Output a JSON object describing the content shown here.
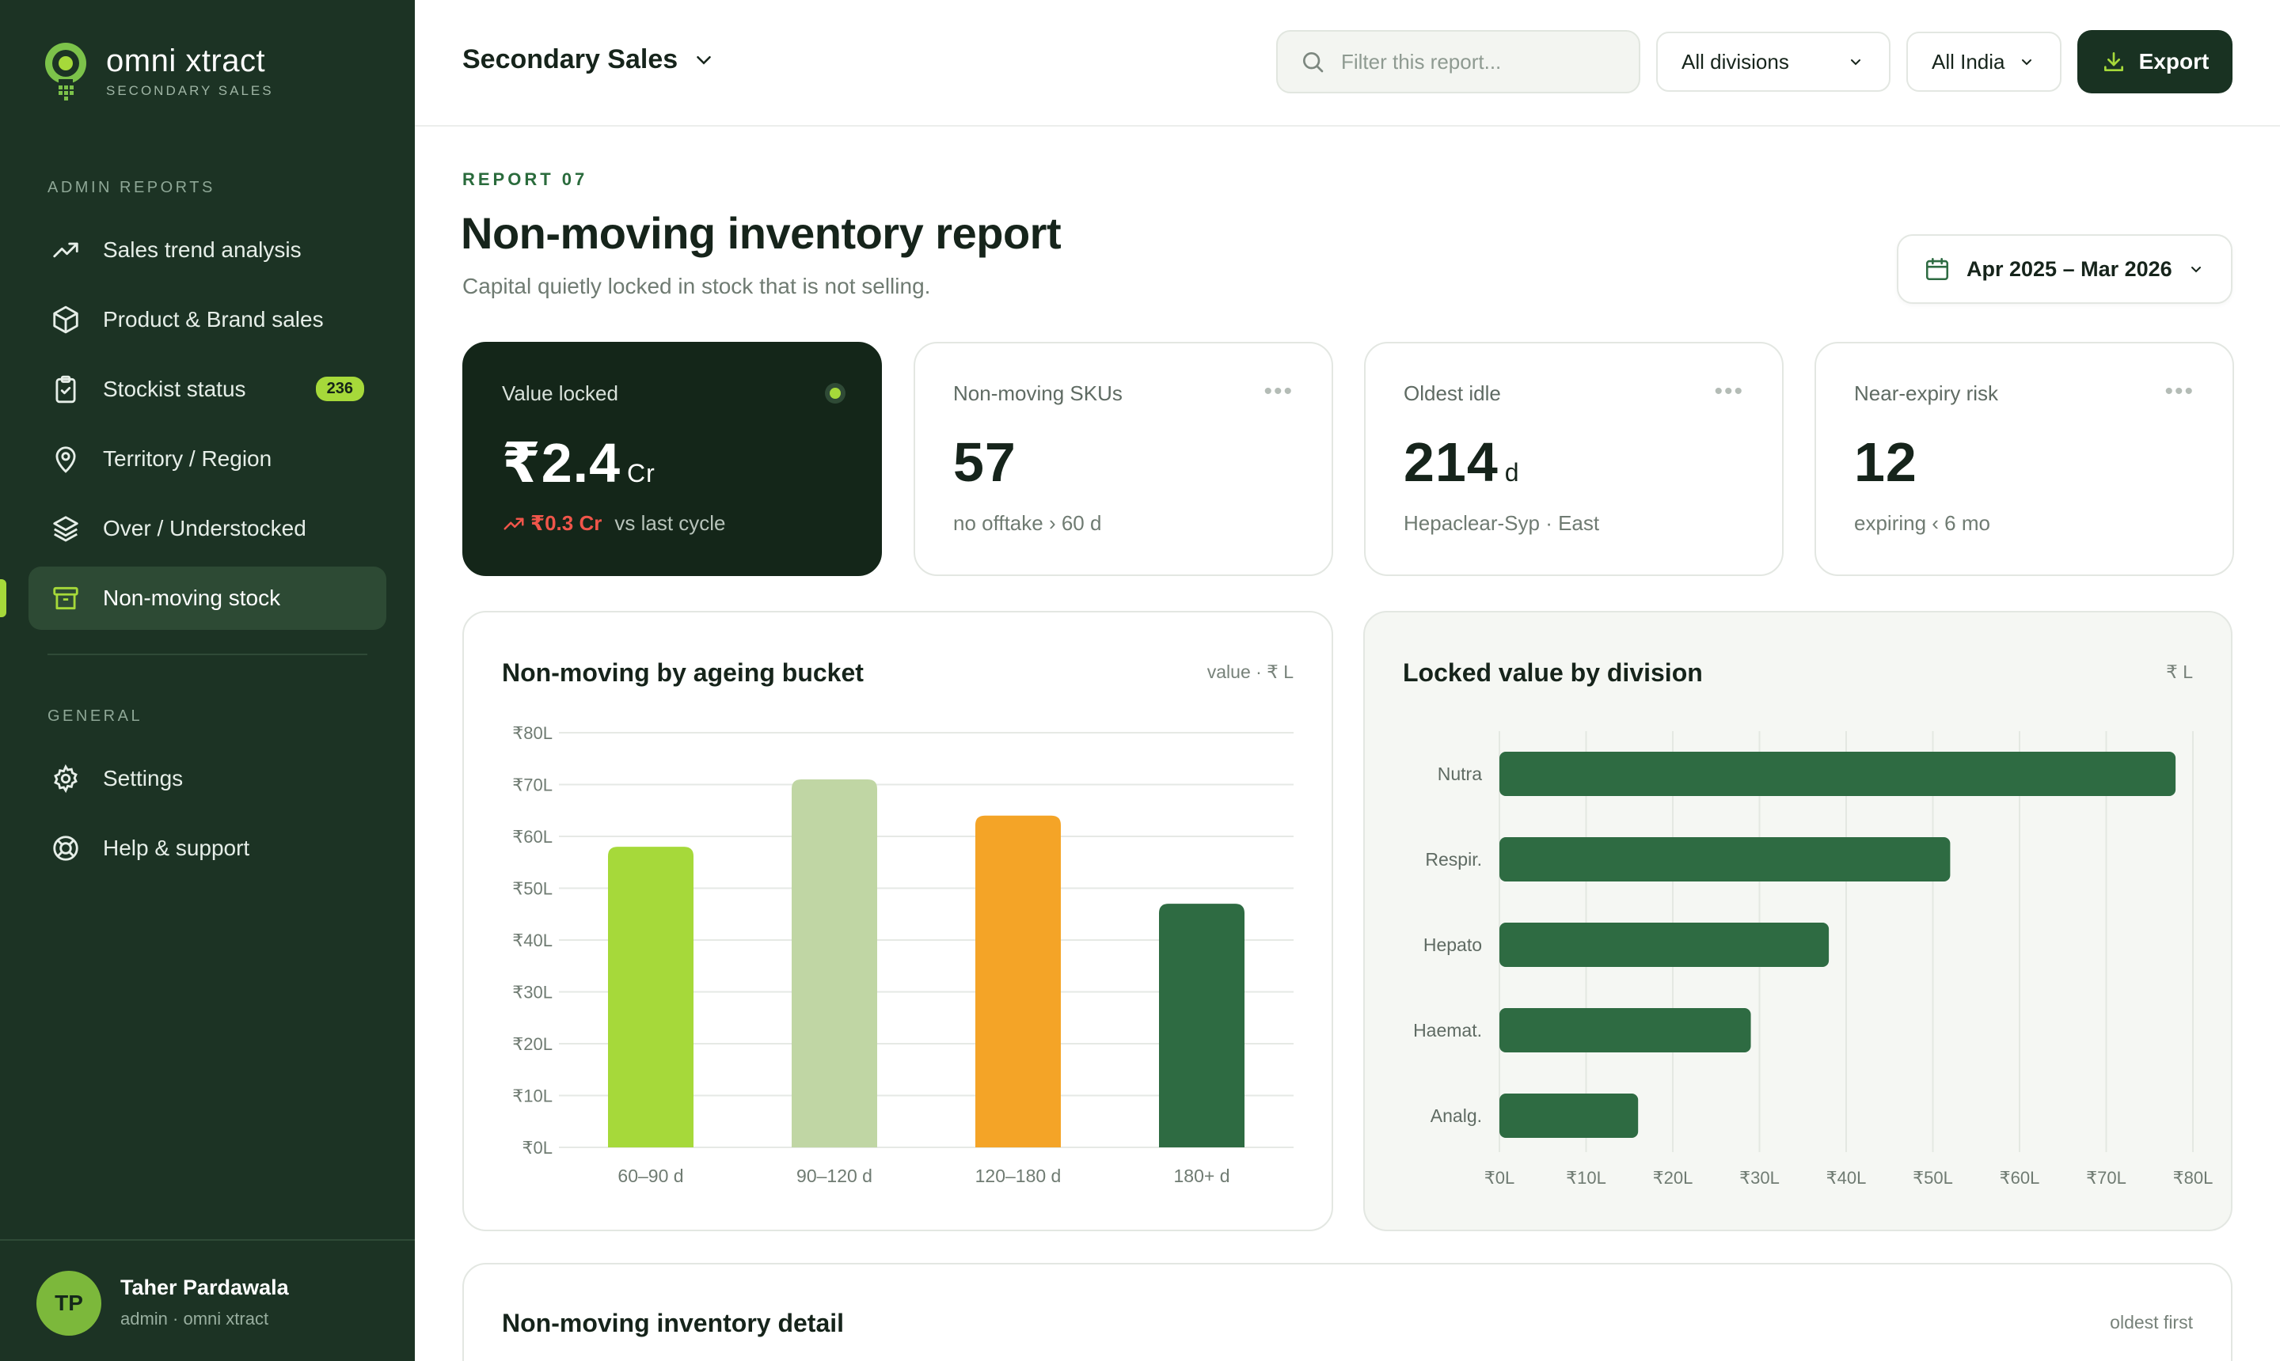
{
  "brand": {
    "name": "omni xtract",
    "subtitle": "SECONDARY SALES"
  },
  "sidebar": {
    "sections": {
      "admin": "ADMIN REPORTS",
      "general": "GENERAL"
    },
    "items": [
      {
        "label": "Sales trend analysis",
        "icon": "trend-up-icon"
      },
      {
        "label": "Product & Brand sales",
        "icon": "box-icon"
      },
      {
        "label": "Stockist status",
        "icon": "clipboard-icon",
        "badge": "236"
      },
      {
        "label": "Territory / Region",
        "icon": "map-pin-icon"
      },
      {
        "label": "Over / Understocked",
        "icon": "layers-icon"
      },
      {
        "label": "Non-moving stock",
        "icon": "archive-icon",
        "active": true
      }
    ],
    "general_items": [
      {
        "label": "Settings",
        "icon": "gear-icon"
      },
      {
        "label": "Help & support",
        "icon": "lifebuoy-icon"
      }
    ],
    "user": {
      "initials": "TP",
      "name": "Taher Pardawala",
      "role": "admin · omni xtract"
    }
  },
  "topbar": {
    "page_selector": "Secondary Sales",
    "search_placeholder": "Filter this report...",
    "division_filter": "All divisions",
    "region_filter": "All India",
    "export_label": "Export"
  },
  "header": {
    "eyebrow": "REPORT 07",
    "title": "Non-moving inventory report",
    "subtitle": "Capital quietly locked in stock that is not selling.",
    "date_range": "Apr 2025 – Mar 2026"
  },
  "kpis": [
    {
      "label": "Value locked",
      "value": "₹2.4",
      "unit": "Cr",
      "delta": "₹0.3 Cr",
      "foot": "vs last cycle"
    },
    {
      "label": "Non-moving SKUs",
      "value": "57",
      "unit": "",
      "foot": "no offtake › 60 d"
    },
    {
      "label": "Oldest idle",
      "value": "214",
      "unit": "d",
      "foot": "Hepaclear-Syp · East"
    },
    {
      "label": "Near-expiry risk",
      "value": "12",
      "unit": "",
      "foot": "expiring ‹ 6 mo"
    }
  ],
  "colors": {
    "sidebar_bg": "#1c3324",
    "accent_lime": "#a6d93a",
    "bar_sage": "#c0d6a4",
    "bar_orange": "#f4a427",
    "bar_green": "#2e6b42",
    "negative": "#f0554a"
  },
  "chart_data": [
    {
      "type": "bar",
      "title": "Non-moving by ageing bucket",
      "note": "value · ₹ L",
      "categories": [
        "60–90 d",
        "90–120 d",
        "120–180 d",
        "180+ d"
      ],
      "values": [
        58,
        71,
        64,
        47
      ],
      "bar_colors": [
        "#a6d93a",
        "#c0d6a4",
        "#f4a427",
        "#2e6b42"
      ],
      "ylim": [
        0,
        80
      ],
      "yticks": [
        "₹0L",
        "₹10L",
        "₹20L",
        "₹30L",
        "₹40L",
        "₹50L",
        "₹60L",
        "₹70L",
        "₹80L"
      ],
      "grid": true
    },
    {
      "type": "bar",
      "orientation": "horizontal",
      "title": "Locked value by division",
      "note": "₹ L",
      "categories": [
        "Nutra",
        "Respir.",
        "Hepato",
        "Haemat.",
        "Analg."
      ],
      "values": [
        78,
        52,
        38,
        29,
        16
      ],
      "xlim": [
        0,
        80
      ],
      "xticks": [
        "₹0L",
        "₹10L",
        "₹20L",
        "₹30L",
        "₹40L",
        "₹50L",
        "₹60L",
        "₹70L",
        "₹80L"
      ],
      "grid": true
    }
  ],
  "detail": {
    "title": "Non-moving inventory detail",
    "sort": "oldest first"
  }
}
